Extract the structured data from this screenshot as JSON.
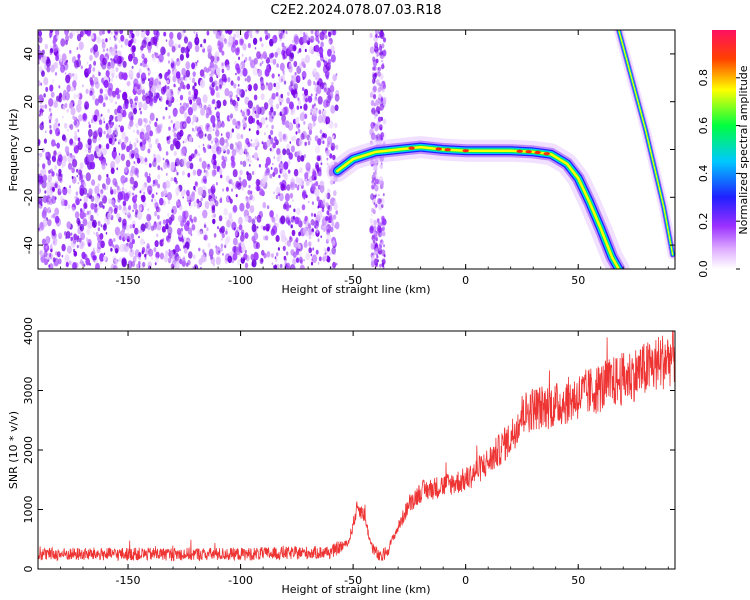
{
  "title": "C2E2.2024.078.07.03.R18",
  "chart_data": [
    {
      "type": "heatmap",
      "xlabel": "Height of straight line (km)",
      "ylabel": "Frequency (Hz)",
      "xlim": [
        -190,
        93
      ],
      "ylim": [
        -50,
        50
      ],
      "xticks": [
        -150,
        -100,
        -50,
        0,
        50
      ],
      "yticks": [
        -40,
        -20,
        0,
        20,
        40
      ],
      "colorbar": {
        "label": "Normalized spectral amplitude",
        "range": [
          0,
          1
        ],
        "ticks": [
          "0.0",
          "0.2",
          "0.4",
          "0.6",
          "0.8"
        ],
        "colors": [
          "#ffffff",
          "#9b30ff",
          "#2020ff",
          "#00c8ff",
          "#00ff40",
          "#ffff00",
          "#ff4000",
          "#ff1060"
        ]
      },
      "noise_region": {
        "x_range": [
          -190,
          -57
        ],
        "y_range": [
          -50,
          50
        ]
      },
      "noise_band": {
        "x_range": [
          -42,
          -36
        ],
        "y_range": [
          -50,
          50
        ]
      },
      "signal_trace": {
        "x": [
          -57,
          -50,
          -40,
          -30,
          -20,
          -10,
          0,
          10,
          20,
          30,
          38,
          45,
          50,
          55,
          60,
          65,
          68
        ],
        "y": [
          -9,
          -4,
          -1,
          0,
          1,
          0,
          -0.5,
          -0.5,
          -0.5,
          -1,
          -2,
          -6,
          -12,
          -22,
          -33,
          -45,
          -50
        ]
      },
      "steep_trace": {
        "x": [
          68,
          72,
          76,
          80,
          84,
          88,
          92
        ],
        "y": [
          50,
          36,
          22,
          8,
          -8,
          -24,
          -44
        ]
      }
    },
    {
      "type": "line",
      "xlabel": "Height of straight line (km)",
      "ylabel": "SNR (10 * v/v)",
      "xlim": [
        -190,
        93
      ],
      "ylim": [
        0,
        4000
      ],
      "xticks": [
        -150,
        -100,
        -50,
        0,
        50
      ],
      "yticks": [
        0,
        1000,
        2000,
        3000,
        4000
      ],
      "series": [
        {
          "color": "#ee3333",
          "x": [
            -190,
            -150,
            -100,
            -60,
            -52,
            -48,
            -45,
            -42,
            -38,
            -35,
            -30,
            -25,
            -20,
            -10,
            0,
            10,
            20,
            25,
            30,
            40,
            50,
            60,
            70,
            80,
            93
          ],
          "y": [
            250,
            250,
            250,
            280,
            450,
            1050,
            900,
            400,
            180,
            300,
            700,
            1100,
            1300,
            1400,
            1500,
            1800,
            2200,
            2600,
            2700,
            2750,
            2900,
            3050,
            3200,
            3350,
            3600
          ]
        }
      ]
    }
  ]
}
